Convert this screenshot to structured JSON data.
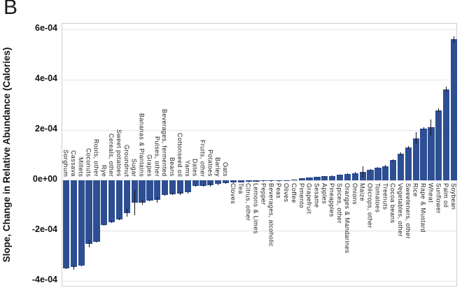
{
  "panel": {
    "letter": "B"
  },
  "chart_data": {
    "type": "bar",
    "title": "",
    "xlabel": "",
    "ylabel": "Slope, Change in Relative Abundance (Calories)",
    "value_unit": "1e-4",
    "ylim_e4": [
      -4.25,
      6.22
    ],
    "grid": true,
    "legend": "none",
    "bar_color": "#2d4e93",
    "error_bar_color": "#141414",
    "label_flip_index": 22,
    "yticks": [
      {
        "label": "6e-04",
        "v": 6
      },
      {
        "label": "4e-04",
        "v": 4
      },
      {
        "label": "2e-04",
        "v": 2
      },
      {
        "label": "0e+00",
        "v": 0
      },
      {
        "label": "-2e-04",
        "v": -2
      },
      {
        "label": "-4e-04",
        "v": -4
      }
    ],
    "categories": [
      "Sorghum",
      "Cassava",
      "Millets",
      "Coconuts",
      "Roots, other",
      "Rye",
      "Cereals, other",
      "Sweet potatoes",
      "Groundnut",
      "Sugar",
      "Bananas & Plantains",
      "Grapes",
      "Pulses, other",
      "Beverages, fermented",
      "Beans",
      "Cottonseed oil",
      "Yams",
      "Dates",
      "Fruits, other",
      "Potatoes",
      "Barley",
      "Oats",
      "Cloves",
      "Tea",
      "Citrus, other",
      "Lemons & Limes",
      "Pepper",
      "Beverages, alcoholic",
      "Peas",
      "Olives",
      "Coffee",
      "Pimento",
      "Grapefruit",
      "Sesame",
      "Apples",
      "Pineapples",
      "Spices, other",
      "Oranges & Mandarines",
      "Onions",
      "Maize",
      "Oilcrops, other",
      "Tomatoes",
      "Treenuts",
      "Cocoa beans",
      "Vegetables, other",
      "Sweeteners, other",
      "Rice",
      "Rape & Mustard",
      "Wheat",
      "Sunflower",
      "Palm oil",
      "Soybean"
    ],
    "values_e4": [
      -3.5,
      -3.45,
      -3.38,
      -2.52,
      -2.44,
      -1.77,
      -1.66,
      -1.55,
      -1.3,
      -0.9,
      -0.88,
      -0.8,
      -0.78,
      -0.58,
      -0.55,
      -0.52,
      -0.48,
      -0.22,
      -0.21,
      -0.19,
      -0.15,
      -0.11,
      -0.08,
      -0.07,
      -0.06,
      -0.05,
      -0.04,
      -0.03,
      -0.025,
      -0.015,
      0.02,
      0.07,
      0.1,
      0.13,
      0.16,
      0.18,
      0.21,
      0.25,
      0.29,
      0.34,
      0.42,
      0.5,
      0.56,
      0.8,
      1.05,
      1.3,
      1.68,
      2.06,
      2.1,
      2.78,
      3.62,
      5.6
    ],
    "errors_e4": [
      0.04,
      0.1,
      0.03,
      0.15,
      0.03,
      0.03,
      0.04,
      0.04,
      0.15,
      0.5,
      0.08,
      0.04,
      0.1,
      0.03,
      0.04,
      0.05,
      0.04,
      0.03,
      0.03,
      0.07,
      0.05,
      0.03,
      0.01,
      0.01,
      0.01,
      0.01,
      0.01,
      0.01,
      0.01,
      0.01,
      0.01,
      0.02,
      0.02,
      0.02,
      0.02,
      0.02,
      0.02,
      0.03,
      0.03,
      0.22,
      0.03,
      0.03,
      0.06,
      0.04,
      0.05,
      0.06,
      0.23,
      0.05,
      0.33,
      0.08,
      0.1,
      0.12
    ]
  }
}
